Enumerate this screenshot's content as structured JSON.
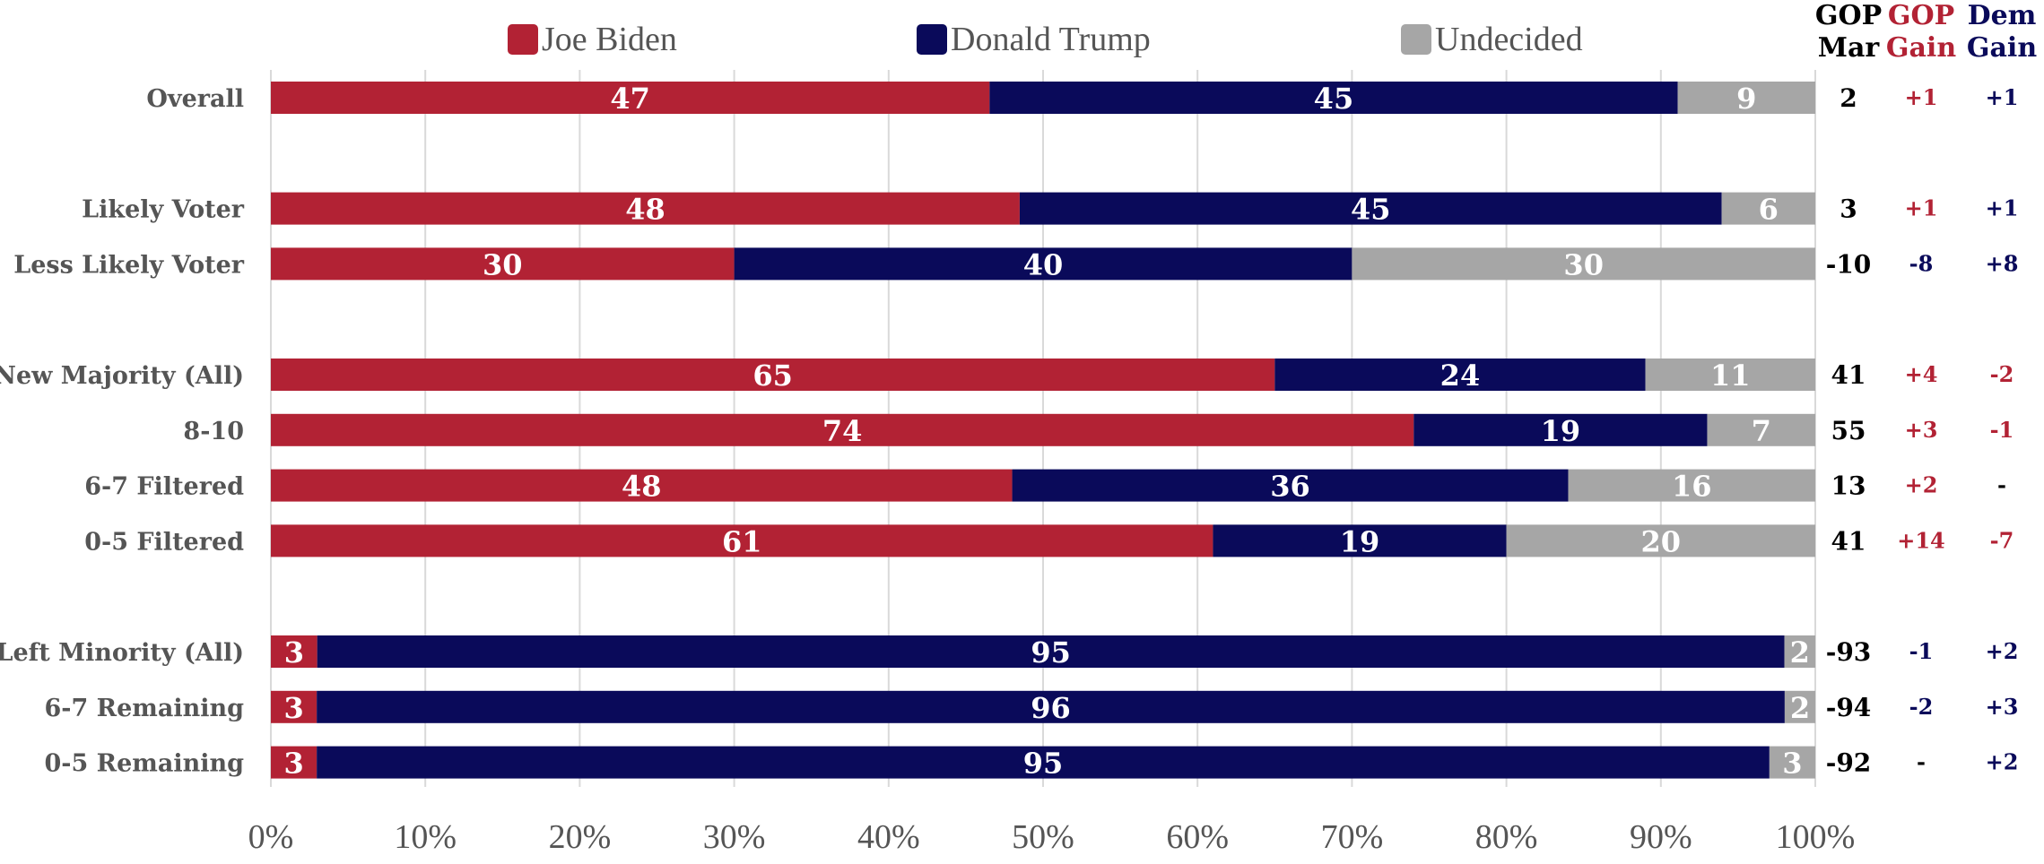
{
  "colors": {
    "biden": "#B22234",
    "trump": "#0A0A5A",
    "undecided": "#A6A6A6",
    "gop_text": "#B22234",
    "dem_text": "#0A0A5A",
    "neutral_text": "#000000",
    "label_text": "#555555",
    "grid": "#D9D9D9"
  },
  "legend": {
    "items": [
      {
        "label": "Joe Biden",
        "color_key": "biden"
      },
      {
        "label": "Donald Trump",
        "color_key": "trump"
      },
      {
        "label": "Undecided",
        "color_key": "undecided"
      }
    ]
  },
  "side_columns": {
    "headers": [
      {
        "lines": [
          "GOP",
          "Mar"
        ],
        "color_key": "neutral_text"
      },
      {
        "lines": [
          "GOP",
          "Gain"
        ],
        "color_key": "gop_text"
      },
      {
        "lines": [
          "Dem",
          "Gain"
        ],
        "color_key": "dem_text"
      }
    ]
  },
  "chart_data": {
    "type": "bar",
    "orientation": "horizontal",
    "stacked": "percent",
    "xlim": [
      0,
      100
    ],
    "x_ticks": [
      "0%",
      "10%",
      "20%",
      "30%",
      "40%",
      "50%",
      "60%",
      "70%",
      "80%",
      "90%",
      "100%"
    ],
    "grid": true,
    "legend_position": "top",
    "series": [
      {
        "name": "Joe Biden",
        "color_key": "biden"
      },
      {
        "name": "Donald Trump",
        "color_key": "trump"
      },
      {
        "name": "Undecided",
        "color_key": "undecided"
      }
    ],
    "rows": [
      {
        "category": "Overall",
        "values": [
          47,
          45,
          9
        ],
        "gop_mar": "2",
        "gop_gain": "+1",
        "dem_gain": "+1",
        "gop_gain_color": "gop_text",
        "dem_gain_color": "dem_text"
      },
      {
        "category": "",
        "spacer": true
      },
      {
        "category": "Likely Voter",
        "values": [
          48,
          45,
          6
        ],
        "gop_mar": "3",
        "gop_gain": "+1",
        "dem_gain": "+1",
        "gop_gain_color": "gop_text",
        "dem_gain_color": "dem_text"
      },
      {
        "category": "Less Likely Voter",
        "values": [
          30,
          40,
          30
        ],
        "gop_mar": "-10",
        "gop_gain": "-8",
        "dem_gain": "+8",
        "gop_gain_color": "dem_text",
        "dem_gain_color": "dem_text"
      },
      {
        "category": "",
        "spacer": true
      },
      {
        "category": "New Majority (All)",
        "values": [
          65,
          24,
          11
        ],
        "gop_mar": "41",
        "gop_gain": "+4",
        "dem_gain": "-2",
        "gop_gain_color": "gop_text",
        "dem_gain_color": "gop_text"
      },
      {
        "category": "8-10",
        "values": [
          74,
          19,
          7
        ],
        "gop_mar": "55",
        "gop_gain": "+3",
        "dem_gain": "-1",
        "gop_gain_color": "gop_text",
        "dem_gain_color": "gop_text"
      },
      {
        "category": "6-7 Filtered",
        "values": [
          48,
          36,
          16
        ],
        "gop_mar": "13",
        "gop_gain": "+2",
        "dem_gain": "-",
        "gop_gain_color": "gop_text",
        "dem_gain_color": "neutral_text"
      },
      {
        "category": "0-5 Filtered",
        "values": [
          61,
          19,
          20
        ],
        "gop_mar": "41",
        "gop_gain": "+14",
        "dem_gain": "-7",
        "gop_gain_color": "gop_text",
        "dem_gain_color": "gop_text"
      },
      {
        "category": "",
        "spacer": true
      },
      {
        "category": "Left Minority (All)",
        "values": [
          3,
          95,
          2
        ],
        "gop_mar": "-93",
        "gop_gain": "-1",
        "dem_gain": "+2",
        "gop_gain_color": "dem_text",
        "dem_gain_color": "dem_text"
      },
      {
        "category": "6-7 Remaining",
        "values": [
          3,
          96,
          2
        ],
        "gop_mar": "-94",
        "gop_gain": "-2",
        "dem_gain": "+3",
        "gop_gain_color": "dem_text",
        "dem_gain_color": "dem_text"
      },
      {
        "category": "0-5 Remaining",
        "values": [
          3,
          95,
          3
        ],
        "gop_mar": "-92",
        "gop_gain": "-",
        "dem_gain": "+2",
        "gop_gain_color": "neutral_text",
        "dem_gain_color": "dem_text"
      }
    ]
  }
}
